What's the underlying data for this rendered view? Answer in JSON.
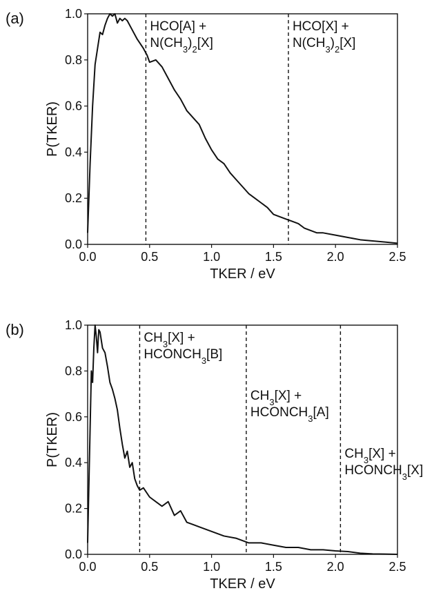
{
  "chart_data": [
    {
      "type": "line",
      "label": "(a)",
      "xlabel": "TKER / eV",
      "ylabel": "P(TKER)",
      "color": "#111111",
      "xlim": [
        0,
        2.5
      ],
      "ylim": [
        0,
        1
      ],
      "xticks": [
        {
          "value": 0,
          "label": "0.0"
        },
        {
          "value": 0.5,
          "label": "0.5"
        },
        {
          "value": 1,
          "label": "1.0"
        },
        {
          "value": 1.5,
          "label": "1.5"
        },
        {
          "value": 2,
          "label": "2.0"
        },
        {
          "value": 2.5,
          "label": "2.5"
        }
      ],
      "yticks": [
        {
          "value": 0,
          "label": "0.0"
        },
        {
          "value": 0.2,
          "label": "0.2"
        },
        {
          "value": 0.4,
          "label": "0.4"
        },
        {
          "value": 0.6,
          "label": "0.6"
        },
        {
          "value": 0.8,
          "label": "0.8"
        },
        {
          "value": 1,
          "label": "1.0"
        }
      ],
      "x": [
        0,
        0.02,
        0.04,
        0.06,
        0.08,
        0.1,
        0.12,
        0.14,
        0.16,
        0.18,
        0.2,
        0.22,
        0.24,
        0.26,
        0.28,
        0.3,
        0.32,
        0.35,
        0.4,
        0.45,
        0.48,
        0.5,
        0.55,
        0.6,
        0.65,
        0.7,
        0.75,
        0.8,
        0.85,
        0.9,
        0.95,
        1.0,
        1.05,
        1.1,
        1.15,
        1.2,
        1.25,
        1.3,
        1.35,
        1.4,
        1.45,
        1.5,
        1.55,
        1.6,
        1.65,
        1.7,
        1.75,
        1.8,
        1.85,
        1.9,
        2.0,
        2.1,
        2.2,
        2.3,
        2.4,
        2.5
      ],
      "values": [
        0.05,
        0.35,
        0.6,
        0.78,
        0.85,
        0.92,
        0.91,
        0.95,
        0.98,
        1.0,
        0.99,
        1.0,
        0.96,
        0.98,
        0.97,
        0.98,
        0.97,
        0.94,
        0.89,
        0.85,
        0.82,
        0.79,
        0.8,
        0.77,
        0.72,
        0.67,
        0.63,
        0.58,
        0.55,
        0.52,
        0.46,
        0.41,
        0.37,
        0.35,
        0.31,
        0.28,
        0.25,
        0.22,
        0.2,
        0.18,
        0.16,
        0.13,
        0.12,
        0.11,
        0.1,
        0.09,
        0.07,
        0.06,
        0.05,
        0.05,
        0.04,
        0.03,
        0.02,
        0.015,
        0.01,
        0.005
      ],
      "annotations": [
        {
          "x": 0.47,
          "lines": [
            [
              "HCO[A] +"
            ],
            [
              "N(CH",
              "3",
              ")",
              "2",
              "[X]"
            ]
          ]
        },
        {
          "x": 1.62,
          "lines": [
            [
              "HCO[X] +"
            ],
            [
              "N(CH",
              "3",
              ")",
              "2",
              "[X]"
            ]
          ]
        }
      ]
    },
    {
      "type": "line",
      "label": "(b)",
      "xlabel": "TKER / eV",
      "ylabel": "P(TKER)",
      "color": "#111111",
      "xlim": [
        0,
        2.5
      ],
      "ylim": [
        0,
        1
      ],
      "xticks": [
        {
          "value": 0,
          "label": "0.0"
        },
        {
          "value": 0.5,
          "label": "0.5"
        },
        {
          "value": 1,
          "label": "1.0"
        },
        {
          "value": 1.5,
          "label": "1.5"
        },
        {
          "value": 2,
          "label": "2.0"
        },
        {
          "value": 2.5,
          "label": "2.5"
        }
      ],
      "yticks": [
        {
          "value": 0,
          "label": "0.0"
        },
        {
          "value": 0.2,
          "label": "0.2"
        },
        {
          "value": 0.4,
          "label": "0.4"
        },
        {
          "value": 0.6,
          "label": "0.6"
        },
        {
          "value": 0.8,
          "label": "0.8"
        },
        {
          "value": 1,
          "label": "1.0"
        }
      ],
      "x": [
        0,
        0.02,
        0.03,
        0.04,
        0.05,
        0.06,
        0.07,
        0.08,
        0.09,
        0.1,
        0.12,
        0.14,
        0.16,
        0.18,
        0.2,
        0.22,
        0.24,
        0.26,
        0.28,
        0.3,
        0.32,
        0.34,
        0.36,
        0.38,
        0.4,
        0.42,
        0.45,
        0.5,
        0.55,
        0.6,
        0.65,
        0.7,
        0.75,
        0.8,
        0.85,
        0.9,
        1.0,
        1.1,
        1.2,
        1.3,
        1.4,
        1.5,
        1.6,
        1.7,
        1.8,
        1.9,
        2.0,
        2.1,
        2.2,
        2.3,
        2.4,
        2.5
      ],
      "values": [
        0.05,
        0.55,
        0.8,
        0.75,
        0.9,
        1.0,
        0.95,
        0.88,
        0.98,
        0.97,
        0.9,
        0.88,
        0.82,
        0.75,
        0.72,
        0.68,
        0.63,
        0.55,
        0.48,
        0.42,
        0.45,
        0.38,
        0.4,
        0.33,
        0.3,
        0.28,
        0.29,
        0.25,
        0.23,
        0.21,
        0.23,
        0.17,
        0.19,
        0.14,
        0.13,
        0.12,
        0.1,
        0.08,
        0.07,
        0.05,
        0.05,
        0.04,
        0.03,
        0.03,
        0.02,
        0.02,
        0.015,
        0.012,
        0.005,
        0.002,
        0.001,
        0
      ],
      "annotations": [
        {
          "x": 0.42,
          "lines": [
            [
              "CH",
              "3",
              "[X] +"
            ],
            [
              "HCONCH",
              "3",
              "[B]"
            ]
          ]
        },
        {
          "x": 1.28,
          "lines": [
            [
              "CH",
              "3",
              "[X] +"
            ],
            [
              "HCONCH",
              "3",
              "[A]"
            ]
          ]
        },
        {
          "x": 2.04,
          "lines": [
            [
              "CH",
              "3",
              "[X] +"
            ],
            [
              "HCONCH",
              "3",
              "[X]"
            ]
          ]
        }
      ]
    }
  ]
}
